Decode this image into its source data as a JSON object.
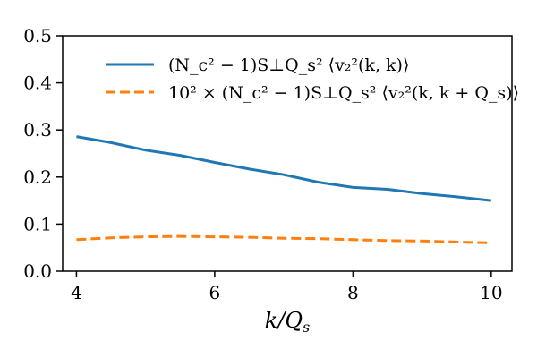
{
  "chart_data": {
    "type": "line",
    "xlabel": "k/Q_s",
    "ylabel": "",
    "xlim": [
      3.8,
      10.3
    ],
    "ylim": [
      0.0,
      0.5
    ],
    "xticks": [
      4,
      6,
      8,
      10
    ],
    "yticks": [
      0.0,
      0.1,
      0.2,
      0.3,
      0.4,
      0.5
    ],
    "xtick_labels": [
      "4",
      "6",
      "8",
      "10"
    ],
    "ytick_labels": [
      "0.0",
      "0.1",
      "0.2",
      "0.3",
      "0.4",
      "0.5"
    ],
    "grid": false,
    "legend_position": "top-left",
    "series": [
      {
        "name": "(N_c² − 1)S⊥Q_s² ⟨v₂²(k, k)⟩",
        "color": "#1f77b4",
        "style": "solid",
        "x": [
          4.0,
          4.5,
          5.0,
          5.5,
          6.0,
          6.5,
          7.0,
          7.5,
          8.0,
          8.5,
          9.0,
          9.5,
          10.0
        ],
        "y": [
          0.286,
          0.273,
          0.257,
          0.246,
          0.231,
          0.217,
          0.205,
          0.189,
          0.178,
          0.174,
          0.165,
          0.158,
          0.15
        ]
      },
      {
        "name": "10² × (N_c² − 1)S⊥Q_s² ⟨v₂²(k, k + Q_s)⟩",
        "color": "#ff7f0e",
        "style": "dashed",
        "x": [
          4.0,
          4.5,
          5.0,
          5.5,
          6.0,
          6.5,
          7.0,
          7.5,
          8.0,
          8.5,
          9.0,
          9.5,
          10.0
        ],
        "y": [
          0.067,
          0.071,
          0.073,
          0.074,
          0.073,
          0.072,
          0.07,
          0.069,
          0.067,
          0.065,
          0.064,
          0.062,
          0.06
        ]
      }
    ]
  }
}
